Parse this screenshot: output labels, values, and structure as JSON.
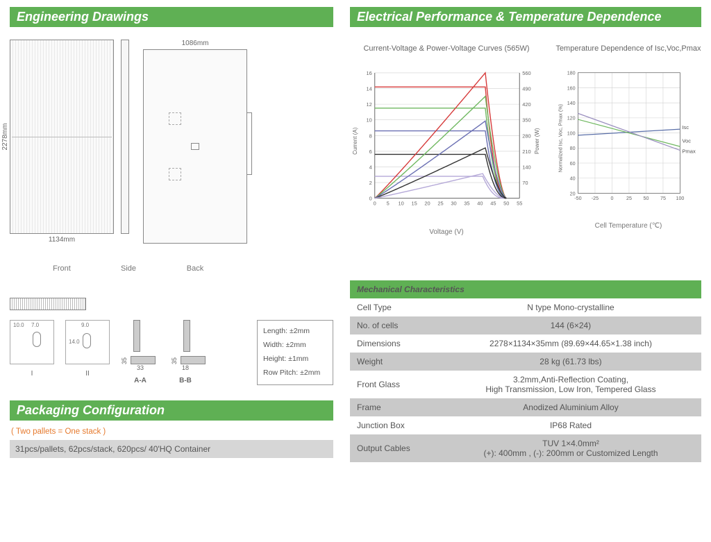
{
  "headers": {
    "engineering": "Engineering Drawings",
    "electrical": "Electrical Performance & Temperature Dependence",
    "packaging": "Packaging Configuration",
    "mechanical": "Mechanical Characteristics"
  },
  "drawings": {
    "top_dim_back": "1086mm",
    "bottom_dim_front": "1134mm",
    "left_dim_front": "2278mm",
    "labels": {
      "front": "Front",
      "side": "Side",
      "back": "Back",
      "aa": "A-A",
      "bb": "B-B",
      "roman1": "I",
      "roman2": "II"
    },
    "profile_aa_w": "33",
    "profile_aa_h": "35",
    "profile_bb_w": "18",
    "profile_bb_h": "35",
    "hole1": {
      "d1": "10.0",
      "d2": "7.0"
    },
    "hole2": {
      "d1": "14.0",
      "d2": "9.0"
    },
    "tolerances": {
      "length": "Length: ±2mm",
      "width": "Width: ±2mm",
      "height": "Height: ±1mm",
      "row": "Row Pitch: ±2mm"
    }
  },
  "packaging": {
    "note": "( Two pallets = One stack )",
    "text": "31pcs/pallets, 62pcs/stack, 620pcs/ 40'HQ Container"
  },
  "iv_chart": {
    "title": "Current-Voltage & Power-Voltage Curves (565W)",
    "xlabel": "Voltage (V)",
    "ylabel_left": "Current (A)",
    "ylabel_right": "Power (W)",
    "xlim": [
      0,
      55
    ],
    "xtick_step": 5,
    "ylim": [
      0,
      16
    ],
    "ytick_step": 2,
    "y2lim": [
      0,
      560
    ],
    "y2tick_step": 70,
    "grid_color": "#d0d0d0",
    "iv_curves": [
      {
        "color": "#d63a3a",
        "flat": 14.2,
        "vmp": 42,
        "voc": 50
      },
      {
        "color": "#6fb860",
        "flat": 11.5,
        "vmp": 42,
        "voc": 50
      },
      {
        "color": "#6a6fb3",
        "flat": 8.6,
        "vmp": 42,
        "voc": 50
      },
      {
        "color": "#323232",
        "flat": 5.6,
        "vmp": 42,
        "voc": 50
      },
      {
        "color": "#b5a9d8",
        "flat": 2.8,
        "vmp": 41,
        "voc": 49
      }
    ],
    "pv_curves": [
      {
        "color": "#d63a3a",
        "pmax": 560,
        "vmp": 42,
        "voc": 50
      },
      {
        "color": "#6fb860",
        "pmax": 455,
        "vmp": 42,
        "voc": 50
      },
      {
        "color": "#6a6fb3",
        "pmax": 345,
        "vmp": 42,
        "voc": 50
      },
      {
        "color": "#323232",
        "pmax": 225,
        "vmp": 42,
        "voc": 50
      },
      {
        "color": "#b5a9d8",
        "pmax": 110,
        "vmp": 41,
        "voc": 49
      }
    ]
  },
  "temp_chart": {
    "title": "Temperature Dependence of Isc,Voc,Pmax",
    "xlabel": "Cell Temperature (℃)",
    "ylabel": "Normalized Isc, Voc, Pmax (%)",
    "xlim": [
      -50,
      100
    ],
    "xticks": [
      -50,
      -25,
      0,
      25,
      50,
      75,
      100
    ],
    "ylim": [
      20,
      180
    ],
    "ytick_step": 20,
    "grid_color": "#d0d0d0",
    "lines": [
      {
        "name": "Isc",
        "color": "#5a6fa8",
        "y_at_m50": 97,
        "y_at_100": 105,
        "label_y": 108
      },
      {
        "name": "Voc",
        "color": "#6fb860",
        "y_at_m50": 118,
        "y_at_100": 82,
        "label_y": 90
      },
      {
        "name": "Pmax",
        "color": "#9a8fbf",
        "y_at_m50": 126,
        "y_at_100": 77,
        "label_y": 76
      }
    ]
  },
  "mechanical": {
    "rows": [
      {
        "label": "Cell  Type",
        "value": "N type Mono-crystalline",
        "alt": false
      },
      {
        "label": "No. of cells",
        "value": "144 (6×24)",
        "alt": true
      },
      {
        "label": "Dimensions",
        "value": "2278×1134×35mm (89.69×44.65×1.38 inch)",
        "alt": false
      },
      {
        "label": "Weight",
        "value": "28 kg (61.73 lbs)",
        "alt": true
      },
      {
        "label": "Front Glass",
        "value": "3.2mm,Anti-Reflection Coating,\nHigh Transmission, Low Iron, Tempered Glass",
        "alt": false
      },
      {
        "label": "Frame",
        "value": "Anodized Aluminium Alloy",
        "alt": true
      },
      {
        "label": "Junction Box",
        "value": "IP68 Rated",
        "alt": false
      },
      {
        "label": "Output Cables",
        "value": "TUV  1×4.0mm²\n(+): 400mm , (-): 200mm or Customized Length",
        "alt": true
      }
    ]
  }
}
